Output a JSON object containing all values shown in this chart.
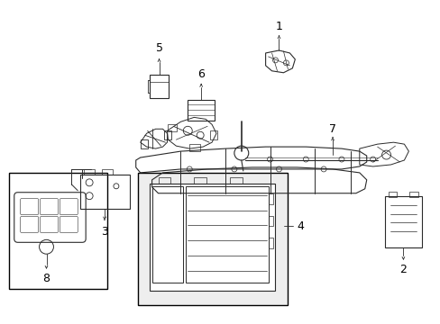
{
  "background_color": "#ffffff",
  "line_color": "#2a2a2a",
  "border_color": "#000000",
  "fig_width": 4.89,
  "fig_height": 3.6,
  "dpi": 100,
  "gray_fill": "#d8d8d8",
  "light_gray": "#eeeeee"
}
